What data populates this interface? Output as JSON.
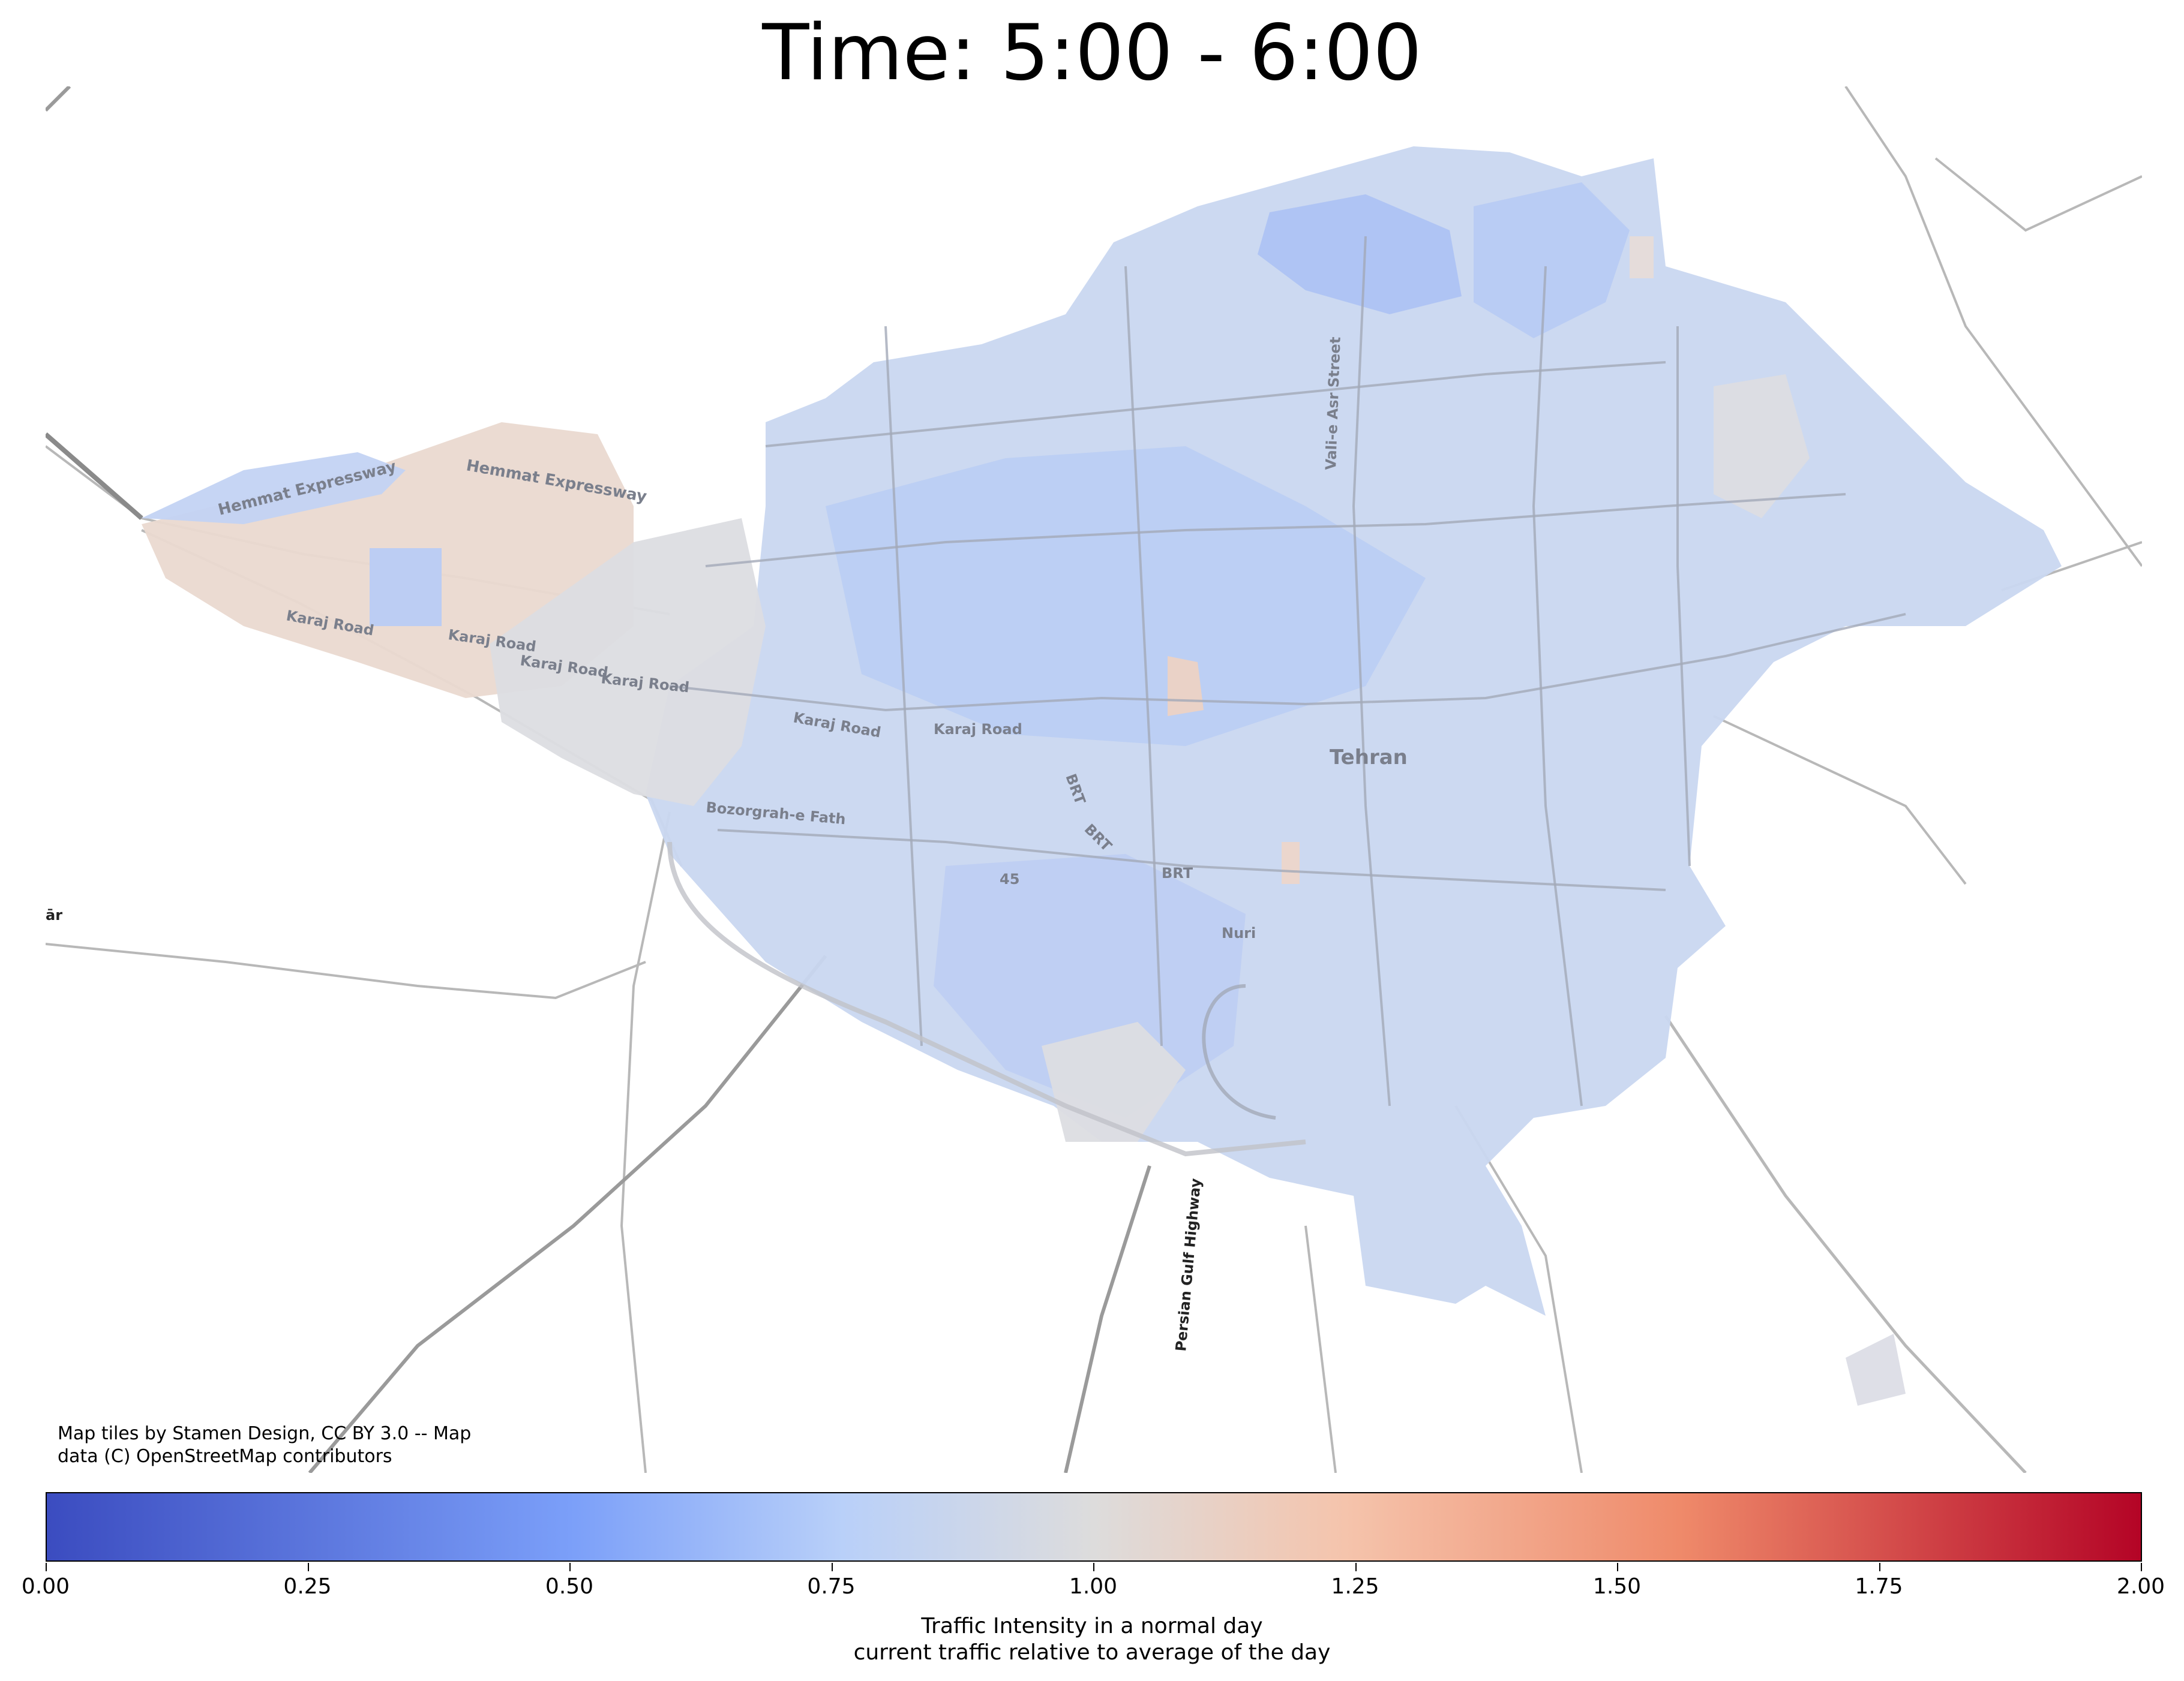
{
  "title": "Time:  5:00 - 6:00",
  "map": {
    "attribution_line1": "Map tiles by Stamen Design, CC BY 3.0 -- Map",
    "attribution_line2": "data (C) OpenStreetMap contributors",
    "city_label": "Tehran",
    "road_labels": [
      "Hemmat Expressway",
      "Hemmat Expressway",
      "Karaj Road",
      "Karaj Road",
      "Karaj Road",
      "Karaj Road",
      "Karaj Road",
      "Karaj Road",
      "Bozorgrah-e Fath",
      "Vali-e Asr Street",
      "Persian Gulf Highway",
      "BRT",
      "BRT",
      "BRT",
      "Nuri",
      "45",
      "ār"
    ],
    "colors": {
      "low": "#3b4cc0",
      "mid": "#dddcdc",
      "high": "#b40426",
      "region_main": "#c9d7f0",
      "region_north": "#b3c9f5",
      "region_west": "#ead9d0",
      "region_gray": "#dcdde2",
      "road": "#a8a8a8"
    }
  },
  "colorbar": {
    "colormap": "coolwarm",
    "min": 0.0,
    "max": 2.0,
    "ticks": [
      "0.00",
      "0.25",
      "0.50",
      "0.75",
      "1.00",
      "1.25",
      "1.50",
      "1.75",
      "2.00"
    ],
    "label_line1": "Traffic Intensity in a normal day",
    "label_line2": "current traffic relative to average of the day"
  }
}
